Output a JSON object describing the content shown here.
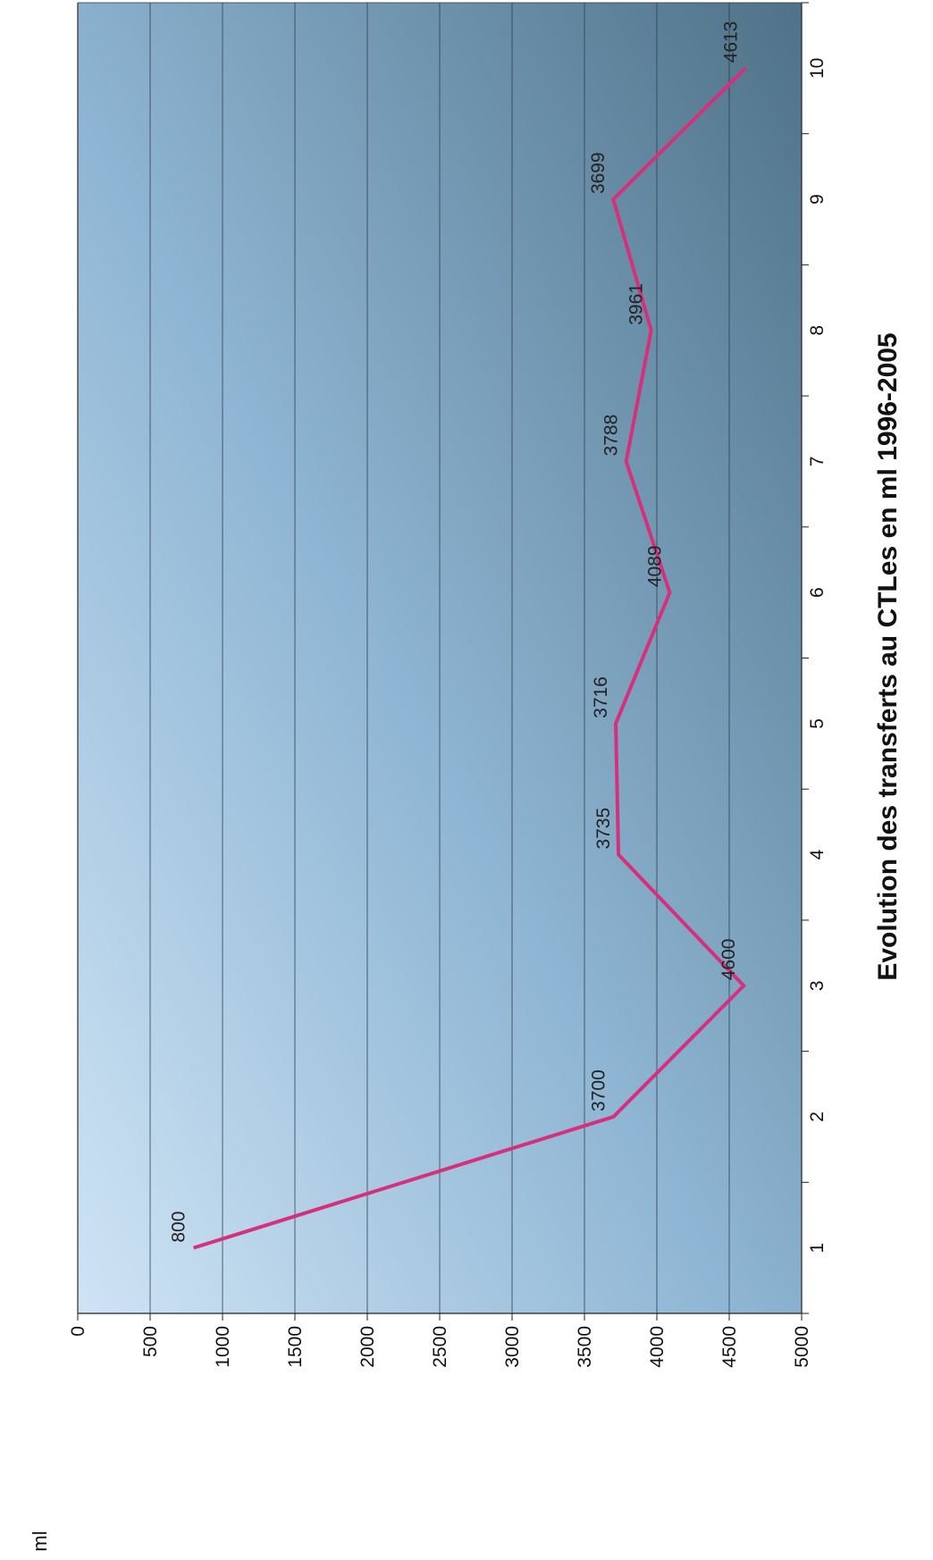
{
  "chart_data": {
    "type": "line",
    "title": "Evolution des transferts au CTLes en ml  1996-2005",
    "ylabel": "ml",
    "x": [
      1,
      2,
      3,
      4,
      5,
      6,
      7,
      8,
      9,
      10
    ],
    "xlim": [
      0.5,
      10.5
    ],
    "ylim": [
      0,
      5000
    ],
    "yticks": [
      0,
      500,
      1000,
      1500,
      2000,
      2500,
      3000,
      3500,
      4000,
      4500,
      5000
    ],
    "series": [
      {
        "values": [
          800,
          3700,
          4600,
          3735,
          3716,
          4089,
          3788,
          3961,
          3699,
          4613
        ]
      }
    ],
    "data_labels": [
      "800",
      "3700",
      "4600",
      "3735",
      "3716",
      "4089",
      "3788",
      "3961",
      "3699",
      "4613"
    ],
    "orientation": "rotated-90-clockwise",
    "grid": true,
    "legend": "none",
    "colors": {
      "line": "#d7307a",
      "grid": "#2a3a4a",
      "background_light": "#cfe4f5",
      "background_dark": "#4f7288"
    }
  }
}
